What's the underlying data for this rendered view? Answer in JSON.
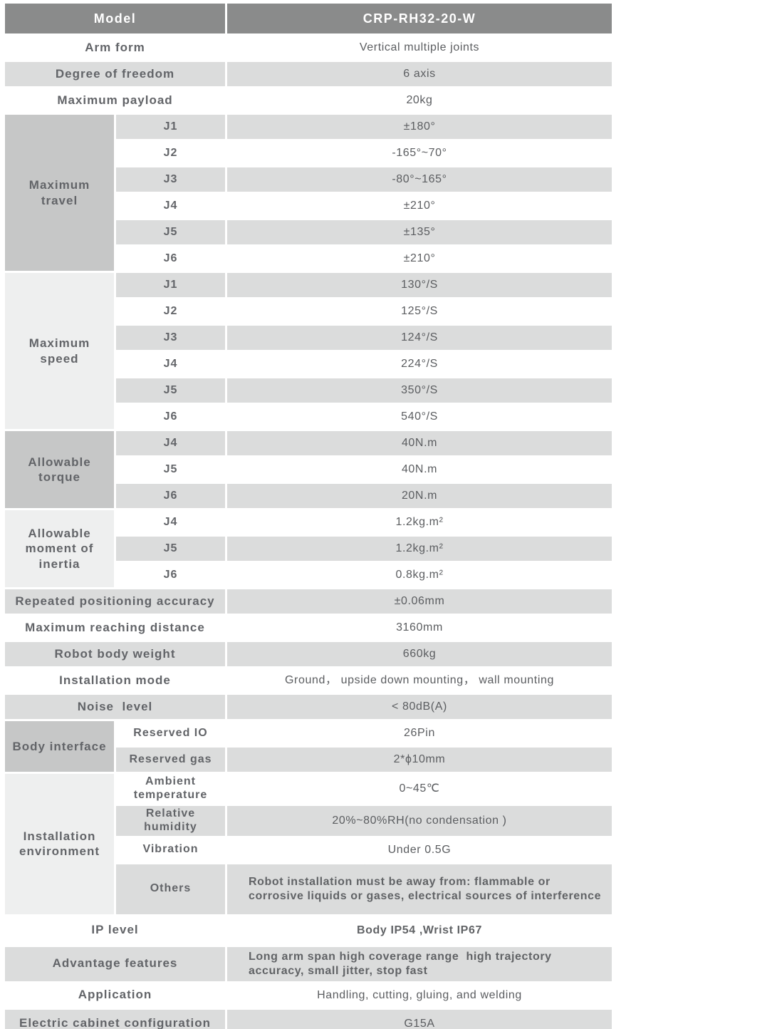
{
  "colors": {
    "header_bg": "#8a8b8b",
    "header_text": "#ffffff",
    "stripe_gray": "#dbdcdc",
    "group_dark": "#c6c7c7",
    "group_light": "#eeefef",
    "label_text": "#626468",
    "value_text": "#5b5d60"
  },
  "header": {
    "label": "Model",
    "value": "CRP-RH32-20-W"
  },
  "rows": [
    {
      "label": "Arm form",
      "value": "Vertical multiple joints"
    },
    {
      "label": "Degree of freedom",
      "value": "6 axis"
    },
    {
      "label": "Maximum payload",
      "value": "20kg"
    },
    {
      "group": "Maximum travel",
      "label": "J1",
      "value": "±180°"
    },
    {
      "label": "J2",
      "value": "-165°~70°"
    },
    {
      "label": "J3",
      "value": "-80°~165°"
    },
    {
      "label": "J4",
      "value": "±210°"
    },
    {
      "label": "J5",
      "value": "±135°"
    },
    {
      "label": "J6",
      "value": "±210°"
    },
    {
      "group": "Maximum speed",
      "label": "J1",
      "value": "130°/S"
    },
    {
      "label": "J2",
      "value": "125°/S"
    },
    {
      "label": "J3",
      "value": "124°/S"
    },
    {
      "label": "J4",
      "value": "224°/S"
    },
    {
      "label": "J5",
      "value": "350°/S"
    },
    {
      "label": "J6",
      "value": "540°/S"
    },
    {
      "group": "Allowable torque",
      "label": "J4",
      "value": "40N.m"
    },
    {
      "label": "J5",
      "value": "40N.m"
    },
    {
      "label": "J6",
      "value": "20N.m"
    },
    {
      "group": "Allowable moment of inertia",
      "label": "J4",
      "value": "1.2kg.m²"
    },
    {
      "label": "J5",
      "value": "1.2kg.m²"
    },
    {
      "label": "J6",
      "value": "0.8kg.m²"
    },
    {
      "label": "Repeated positioning accuracy",
      "value": "±0.06mm"
    },
    {
      "label": "Maximum reaching distance",
      "value": "3160mm"
    },
    {
      "label": "Robot body weight",
      "value": "660kg"
    },
    {
      "label": "Installation mode",
      "value": "Ground， upside down mounting， wall mounting"
    },
    {
      "label": "Noise  level",
      "value": "< 80dB(A)"
    },
    {
      "group": "Body interface",
      "label": "Reserved IO",
      "value": "26Pin"
    },
    {
      "label": "Reserved gas",
      "value": "2*ϕ10mm"
    },
    {
      "group": "Installation environment",
      "label": "Ambient temperature",
      "value": "0~45℃"
    },
    {
      "label": "Relative humidity",
      "value": "20%~80%RH(no condensation )"
    },
    {
      "label": "Vibration",
      "value": "Under 0.5G"
    },
    {
      "label": "Others",
      "value": "Robot installation must be away from: flammable or corrosive liquids or gases, electrical sources of interference"
    },
    {
      "label": "IP level",
      "value": "Body IP54 ,Wrist IP67"
    },
    {
      "label": "Advantage features",
      "value": "Long arm span high coverage range  high trajectory accuracy, small jitter, stop fast"
    },
    {
      "label": "Application",
      "value": "Handling, cutting, gluing, and welding"
    },
    {
      "label": "Electric cabinet configuration",
      "value": "G15A"
    }
  ]
}
